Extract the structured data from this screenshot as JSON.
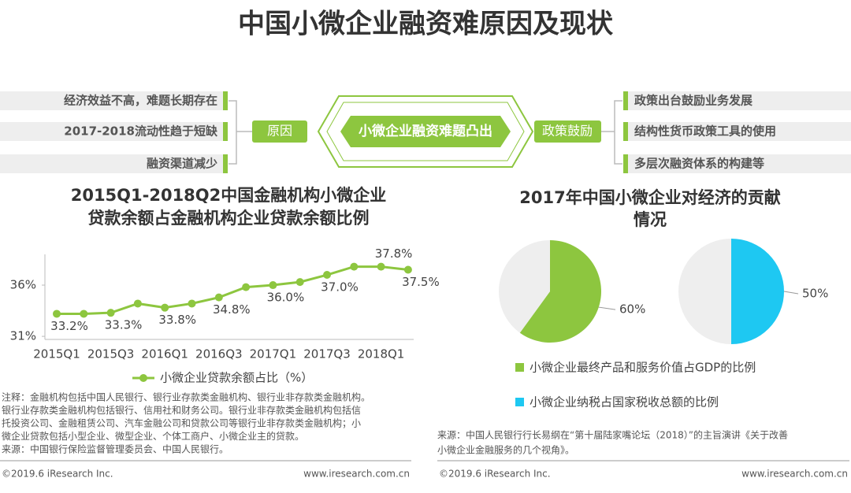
{
  "header": {
    "title": "中国小微企业融资难原因及现状"
  },
  "diagram": {
    "center": "小微企业融资难题凸出",
    "left_label": "原因",
    "right_label": "政策鼓励",
    "causes": [
      "经济效益不高，难题长期存在",
      "2017-2018流动性趋于短缺",
      "融资渠道减少"
    ],
    "policies": [
      "政策出台鼓励业务发展",
      "结构性货币政策工具的使用",
      "多层次融资体系的构建等"
    ]
  },
  "chart_data": [
    {
      "type": "line",
      "title": [
        "2015Q1-2018Q2中国金融机构小微企业",
        "贷款余额占金融机构企业贷款余额比例"
      ],
      "categories": [
        "2015Q1",
        null,
        "2015Q3",
        null,
        "2016Q1",
        null,
        "2016Q3",
        null,
        "2017Q1",
        null,
        "2017Q3",
        null,
        "2018Q1",
        null
      ],
      "series": [
        {
          "name": "小微企业贷款余额占比（%）",
          "color": "#8dc63f",
          "values": [
            33.2,
            33.2,
            33.3,
            34.2,
            33.8,
            34.2,
            34.8,
            35.8,
            36.0,
            36.3,
            37.0,
            37.8,
            37.8,
            37.5
          ],
          "value_labels": [
            "33.2%",
            null,
            "33.3%",
            null,
            "33.8%",
            null,
            "34.8%",
            null,
            "36.0%",
            null,
            "37.0%",
            null,
            "37.8%",
            "37.5%"
          ]
        }
      ],
      "ylim": [
        30.7,
        39
      ],
      "yticks": [
        {
          "value": 31,
          "label": "31%"
        },
        {
          "value": 36,
          "label": "36%"
        }
      ]
    },
    {
      "type": "pie",
      "title": [
        "2017年中国小微企业对经济的贡献",
        "情况"
      ],
      "rest_color": "#eeeeee",
      "series": [
        {
          "name": "小微企业最终产品和服务价值占GDP的比例",
          "color": "#8dc63f",
          "values": [
            60,
            40
          ],
          "value_labels": [
            "60%",
            null
          ]
        },
        {
          "name": "小微企业纳税占国家税收总额的比例",
          "color": "#1ec8f2",
          "values": [
            50,
            50
          ],
          "value_labels": [
            "50%",
            null
          ]
        }
      ]
    }
  ],
  "notes": [
    "注释：金融机构包括中国人民银行、银行业存款类金融机构、银行业非存款类金融机构。",
    "银行业存款类金融机构包括银行、信用社和财务公司。银行业非存款类金融机构包括信",
    "托投资公司、金融租赁公司、汽车金融公司和贷款公司等银行业非存款类金融机构；小",
    "微企业贷款包括小型企业、微型企业、个体工商户、小微企业主的贷款。",
    "来源：中国银行保险监督管理委员会、中国人民银行。"
  ],
  "source": [
    "来源：中国人民银行行长易纲在“第十届陆家嘴论坛（2018）”的主旨演讲《关于改善",
    "小微企业金融服务的几个视角》。"
  ],
  "footer": {
    "copyright": "©2019.6 iResearch Inc.",
    "website": "www.iresearch.com.cn"
  }
}
